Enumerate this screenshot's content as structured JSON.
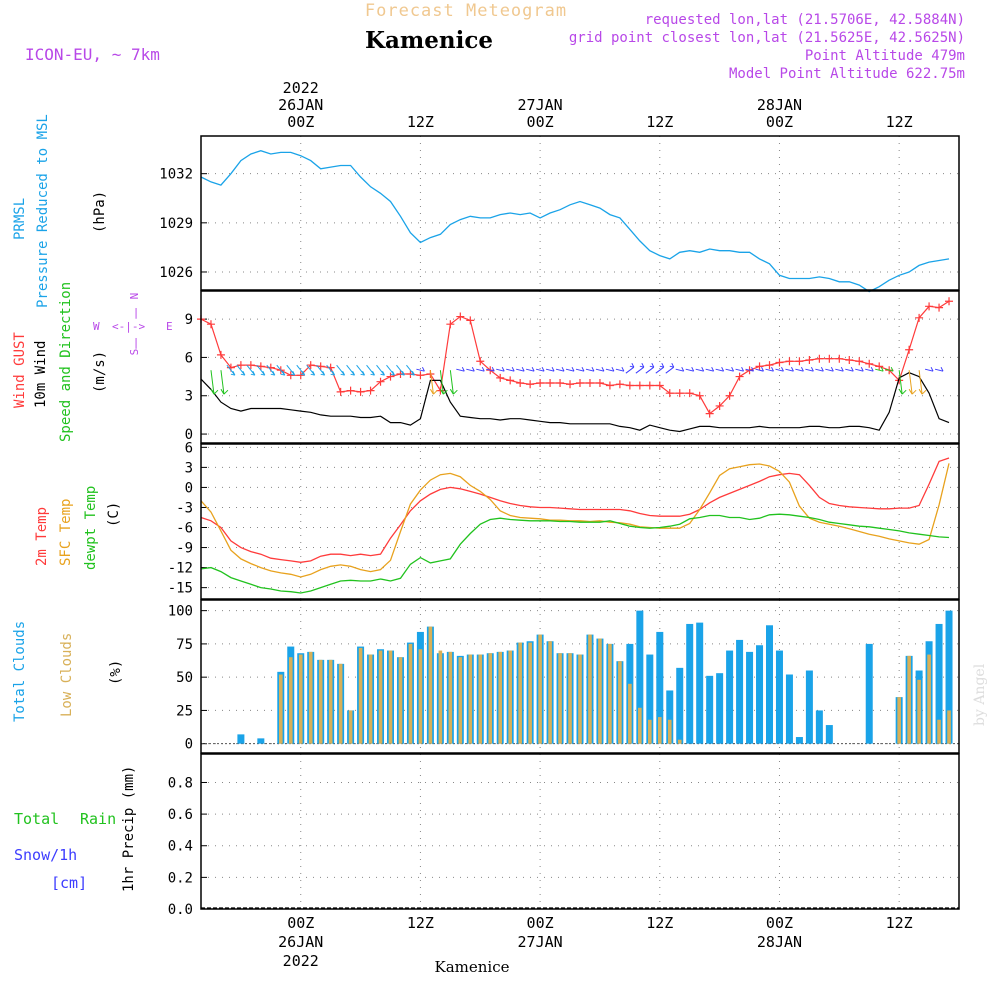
{
  "header": {
    "banner": "Forecast Meteogram",
    "location": "Kamenice",
    "model": "ICON-EU, ~ 7km",
    "requested": "requested lon,lat (21.5706E, 42.5884N)",
    "gridpoint": "grid point closest lon,lat (21.5625E, 42.5625N)",
    "point_alt": "Point Altitude 479m",
    "model_alt": "Model Point Altitude 622.75m",
    "footer_location": "Kamenice",
    "watermark": "by Angel"
  },
  "time_axis": {
    "top": [
      {
        "hour": 10,
        "lines": [
          "2022",
          "26JAN",
          "00Z"
        ]
      },
      {
        "hour": 22,
        "lines": [
          "12Z"
        ]
      },
      {
        "hour": 34,
        "lines": [
          "27JAN",
          "00Z"
        ]
      },
      {
        "hour": 46,
        "lines": [
          "12Z"
        ]
      },
      {
        "hour": 58,
        "lines": [
          "28JAN",
          "00Z"
        ]
      },
      {
        "hour": 70,
        "lines": [
          "12Z"
        ]
      }
    ],
    "bottom": [
      {
        "hour": 10,
        "lines": [
          "00Z",
          "26JAN",
          "2022"
        ]
      },
      {
        "hour": 22,
        "lines": [
          "12Z"
        ]
      },
      {
        "hour": 34,
        "lines": [
          "00Z",
          "27JAN"
        ]
      },
      {
        "hour": 46,
        "lines": [
          "12Z"
        ]
      },
      {
        "hour": 58,
        "lines": [
          "00Z",
          "28JAN"
        ]
      },
      {
        "hour": 70,
        "lines": [
          "12Z"
        ]
      }
    ],
    "hours": [
      0,
      76
    ]
  },
  "colors": {
    "prmsl": "#1aa3e8",
    "gust": "#ff3b3b",
    "wind10m": "#000000",
    "speed_dir": "#21c21e",
    "temp2m": "#ff3b3b",
    "sfc": "#e8a21e",
    "dewpt": "#21c21e",
    "total_cloud": "#1aa3e8",
    "low_cloud": "#d8b058",
    "total_rain": "#21c21e",
    "snow": "#3c3cff",
    "purple": "#b848e8",
    "banner": "#f0c890"
  },
  "labels": {
    "prmsl": [
      "PRMSL",
      "Pressure Reduced to MSL"
    ],
    "prmsl_unit": "(hPa)",
    "wind_gust": "Wind GUST",
    "wind_10m": "10m Wind",
    "wind_speed_dir": "Speed and Direction",
    "wind_unit": "(m/s)",
    "compass": {
      "n": "N",
      "s": "S",
      "e": "E",
      "w": "W",
      "arrow_left": "<-|->",
      "mark_n": "|",
      "mark_s": "|"
    },
    "temp_2m": "2m Temp",
    "temp_sfc": "SFC Temp",
    "temp_dew": "dewpt Temp",
    "temp_unit": "(C)",
    "cloud_total": "Total Clouds",
    "cloud_low": "Low Clouds",
    "cloud_unit": "(%)",
    "rain_total": "Total",
    "rain_word": "Rain",
    "snow": "Snow/1h",
    "snow_unit": "[cm]",
    "precip": "1hr Precip (mm)"
  },
  "chart_data": [
    {
      "type": "line",
      "title": "PRMSL Pressure Reduced to MSL",
      "ylabel": "(hPa)",
      "ylim": [
        1024.9,
        1034.3
      ],
      "yticks": [
        1026,
        1029,
        1032
      ],
      "x": [
        0,
        1,
        2,
        3,
        4,
        5,
        6,
        7,
        8,
        9,
        10,
        11,
        12,
        13,
        14,
        15,
        16,
        17,
        18,
        19,
        20,
        21,
        22,
        23,
        24,
        25,
        26,
        27,
        28,
        29,
        30,
        31,
        32,
        33,
        34,
        35,
        36,
        37,
        38,
        39,
        40,
        41,
        42,
        43,
        44,
        45,
        46,
        47,
        48,
        49,
        50,
        51,
        52,
        53,
        54,
        55,
        56,
        57,
        58,
        59,
        60,
        61,
        62,
        63,
        64,
        65,
        66,
        67,
        68,
        69,
        70,
        71,
        72,
        73,
        74,
        75
      ],
      "series": [
        {
          "name": "PRMSL",
          "values": [
            1031.8,
            1031.5,
            1031.3,
            1032,
            1032.8,
            1033.2,
            1033.4,
            1033.2,
            1033.3,
            1033.3,
            1033.1,
            1032.8,
            1032.3,
            1032.4,
            1032.5,
            1032.5,
            1031.8,
            1031.2,
            1030.8,
            1030.3,
            1029.4,
            1028.4,
            1027.8,
            1028.1,
            1028.3,
            1028.9,
            1029.2,
            1029.4,
            1029.3,
            1029.3,
            1029.5,
            1029.6,
            1029.5,
            1029.6,
            1029.3,
            1029.6,
            1029.8,
            1030.1,
            1030.3,
            1030.1,
            1029.9,
            1029.5,
            1029.3,
            1028.6,
            1027.9,
            1027.3,
            1027,
            1026.8,
            1027.2,
            1027.3,
            1027.2,
            1027.4,
            1027.3,
            1027.3,
            1027.2,
            1027.2,
            1026.8,
            1026.5,
            1025.8,
            1025.6,
            1025.6,
            1025.6,
            1025.7,
            1025.6,
            1025.4,
            1025.4,
            1025.2,
            1024.8,
            1025.1,
            1025.5,
            1025.8,
            1026.0,
            1026.4,
            1026.6,
            1026.7,
            1026.8
          ]
        }
      ]
    },
    {
      "type": "line",
      "title": "Wind GUST / 10m Wind Speed and Direction",
      "ylabel": "(m/s)",
      "ylim": [
        -0.7,
        11.2
      ],
      "yticks": [
        0,
        3,
        6,
        9
      ],
      "x": [
        0,
        1,
        2,
        3,
        4,
        5,
        6,
        7,
        8,
        9,
        10,
        11,
        12,
        13,
        14,
        15,
        16,
        17,
        18,
        19,
        20,
        21,
        22,
        23,
        24,
        25,
        26,
        27,
        28,
        29,
        30,
        31,
        32,
        33,
        34,
        35,
        36,
        37,
        38,
        39,
        40,
        41,
        42,
        43,
        44,
        45,
        46,
        47,
        48,
        49,
        50,
        51,
        52,
        53,
        54,
        55,
        56,
        57,
        58,
        59,
        60,
        61,
        62,
        63,
        64,
        65,
        66,
        67,
        68,
        69,
        70,
        71,
        72,
        73,
        74,
        75
      ],
      "series": [
        {
          "name": "Wind GUST",
          "marker": "+",
          "values": [
            9,
            8.6,
            6.2,
            5.2,
            5.4,
            5.4,
            5.3,
            5.2,
            5,
            4.6,
            4.6,
            5.4,
            5.3,
            5.2,
            3.3,
            3.4,
            3.3,
            3.4,
            4.1,
            4.5,
            4.7,
            4.7,
            4.6,
            4.7,
            3.4,
            8.6,
            9.2,
            8.9,
            5.7,
            5,
            4.4,
            4.2,
            4,
            3.9,
            4,
            4,
            4,
            3.9,
            4,
            4,
            4,
            3.8,
            3.9,
            3.8,
            3.8,
            3.8,
            3.8,
            3.2,
            3.2,
            3.2,
            3,
            1.6,
            2.2,
            3,
            4.5,
            5,
            5.3,
            5.4,
            5.6,
            5.7,
            5.7,
            5.8,
            5.9,
            5.9,
            5.9,
            5.8,
            5.7,
            5.5,
            5.3,
            5,
            4.2,
            6.6,
            9.1,
            10,
            9.9,
            10.4
          ]
        },
        {
          "name": "10m Wind",
          "values": [
            4.3,
            3.5,
            2.5,
            2,
            1.8,
            2,
            2,
            2,
            2,
            1.9,
            1.8,
            1.7,
            1.5,
            1.4,
            1.4,
            1.4,
            1.3,
            1.3,
            1.4,
            0.9,
            0.9,
            0.7,
            1.2,
            4.2,
            4.2,
            2.5,
            1.4,
            1.3,
            1.2,
            1.2,
            1.1,
            1.2,
            1.2,
            1.1,
            1,
            0.9,
            0.9,
            0.8,
            0.8,
            0.8,
            0.8,
            0.8,
            0.6,
            0.5,
            0.3,
            0.7,
            0.5,
            0.3,
            0.2,
            0.4,
            0.6,
            0.6,
            0.5,
            0.5,
            0.5,
            0.5,
            0.6,
            0.5,
            0.5,
            0.5,
            0.5,
            0.6,
            0.6,
            0.5,
            0.5,
            0.6,
            0.6,
            0.5,
            0.3,
            1.7,
            4.4,
            4.8,
            4.5,
            3.2,
            1.2,
            0.9
          ]
        }
      ]
    },
    {
      "type": "line",
      "title": "2m Temp / SFC Temp / dewpt Temp",
      "ylabel": "(C)",
      "ylim": [
        -16.7,
        6.5
      ],
      "yticks": [
        -15,
        -12,
        -9,
        -6,
        -3,
        0,
        3,
        6
      ],
      "x": [
        0,
        1,
        2,
        3,
        4,
        5,
        6,
        7,
        8,
        9,
        10,
        11,
        12,
        13,
        14,
        15,
        16,
        17,
        18,
        19,
        20,
        21,
        22,
        23,
        24,
        25,
        26,
        27,
        28,
        29,
        30,
        31,
        32,
        33,
        34,
        35,
        36,
        37,
        38,
        39,
        40,
        41,
        42,
        43,
        44,
        45,
        46,
        47,
        48,
        49,
        50,
        51,
        52,
        53,
        54,
        55,
        56,
        57,
        58,
        59,
        60,
        61,
        62,
        63,
        64,
        65,
        66,
        67,
        68,
        69,
        70,
        71,
        72,
        73,
        74,
        75
      ],
      "series": [
        {
          "name": "2m Temp",
          "values": [
            -4.5,
            -5,
            -6,
            -8,
            -9,
            -9.6,
            -10,
            -10.6,
            -10.8,
            -11,
            -11.2,
            -11,
            -10.3,
            -10,
            -10,
            -10.2,
            -10,
            -10.2,
            -10,
            -7.6,
            -5.6,
            -3.5,
            -2,
            -1,
            -0.3,
            0,
            -0.2,
            -0.6,
            -1,
            -1.5,
            -2,
            -2.4,
            -2.7,
            -2.9,
            -3,
            -3,
            -3.1,
            -3.2,
            -3.3,
            -3.3,
            -3.3,
            -3.3,
            -3.3,
            -3.5,
            -3.9,
            -4.2,
            -4.3,
            -4.3,
            -4.3,
            -4,
            -3.3,
            -2.3,
            -1.5,
            -0.9,
            -0.3,
            0.3,
            0.9,
            1.6,
            1.9,
            2.1,
            1.9,
            0.3,
            -1.5,
            -2.4,
            -2.7,
            -2.9,
            -3,
            -3.1,
            -3.2,
            -3.2,
            -3.1,
            -3.1,
            -2.7,
            0.5,
            3.9,
            4.4
          ]
        },
        {
          "name": "SFC Temp",
          "values": [
            -2,
            -3.7,
            -6.5,
            -9.4,
            -10.7,
            -11.4,
            -12,
            -12.5,
            -12.8,
            -13,
            -13.4,
            -13,
            -12.3,
            -11.8,
            -11.6,
            -11.8,
            -12.3,
            -12.6,
            -12.3,
            -10.9,
            -6.6,
            -2.5,
            -0.4,
            1.1,
            1.9,
            2.1,
            1.6,
            0.3,
            -0.6,
            -1.8,
            -3.5,
            -4.2,
            -4.5,
            -4.6,
            -4.7,
            -4.9,
            -4.9,
            -5,
            -5,
            -5.1,
            -5,
            -5.2,
            -5.3,
            -5.5,
            -5.9,
            -6,
            -6.1,
            -6.1,
            -6.1,
            -5.4,
            -3.3,
            -0.8,
            1.8,
            2.8,
            3.1,
            3.4,
            3.5,
            3.2,
            2.4,
            0.8,
            -2.8,
            -4.6,
            -5.2,
            -5.5,
            -5.8,
            -6.2,
            -6.6,
            -7,
            -7.3,
            -7.7,
            -8,
            -8.3,
            -8.5,
            -7.8,
            -2.6,
            3.6
          ]
        },
        {
          "name": "dewpt Temp",
          "values": [
            -12.2,
            -12,
            -12.6,
            -13.5,
            -14,
            -14.5,
            -15,
            -15.2,
            -15.5,
            -15.6,
            -15.8,
            -15.5,
            -15,
            -14.5,
            -14,
            -13.9,
            -14,
            -14,
            -13.7,
            -14,
            -13.6,
            -11.5,
            -10.5,
            -11.3,
            -11,
            -10.7,
            -8.5,
            -6.9,
            -5.5,
            -4.8,
            -4.6,
            -4.8,
            -4.9,
            -5,
            -5,
            -5,
            -5.1,
            -5.1,
            -5.2,
            -5.2,
            -5.2,
            -5,
            -5.4,
            -5.8,
            -6,
            -6.1,
            -6,
            -5.8,
            -5.5,
            -4.7,
            -4.5,
            -4.2,
            -4.2,
            -4.5,
            -4.5,
            -4.8,
            -4.6,
            -4.1,
            -4,
            -4.1,
            -4.3,
            -4.5,
            -4.8,
            -5.2,
            -5.4,
            -5.6,
            -5.8,
            -5.9,
            -6.1,
            -6.3,
            -6.5,
            -6.8,
            -7,
            -7.2,
            -7.4,
            -7.5
          ]
        }
      ]
    },
    {
      "type": "bar",
      "title": "Total Clouds / Low Clouds",
      "ylabel": "(%)",
      "ylim": [
        -7,
        108
      ],
      "yticks": [
        0,
        25,
        50,
        75,
        100
      ],
      "x": [
        0,
        1,
        2,
        3,
        4,
        5,
        6,
        7,
        8,
        9,
        10,
        11,
        12,
        13,
        14,
        15,
        16,
        17,
        18,
        19,
        20,
        21,
        22,
        23,
        24,
        25,
        26,
        27,
        28,
        29,
        30,
        31,
        32,
        33,
        34,
        35,
        36,
        37,
        38,
        39,
        40,
        41,
        42,
        43,
        44,
        45,
        46,
        47,
        48,
        49,
        50,
        51,
        52,
        53,
        54,
        55,
        56,
        57,
        58,
        59,
        60,
        61,
        62,
        63,
        64,
        65,
        66,
        67,
        68,
        69,
        70,
        71,
        72,
        73,
        74,
        75
      ],
      "series": [
        {
          "name": "Total Clouds",
          "values": [
            0,
            0,
            0,
            0,
            7,
            0,
            4,
            0,
            54,
            73,
            68,
            69,
            63,
            63,
            60,
            25,
            73,
            67,
            71,
            70,
            65,
            76,
            84,
            88,
            68,
            69,
            66,
            67,
            67,
            68,
            69,
            70,
            76,
            77,
            82,
            77,
            68,
            68,
            67,
            82,
            79,
            75,
            62,
            75,
            100,
            67,
            84,
            40,
            57,
            90,
            91,
            51,
            53,
            70,
            78,
            69,
            74,
            89,
            70,
            52,
            5,
            55,
            25,
            14,
            0,
            0,
            0,
            75,
            0,
            0,
            35,
            66,
            55,
            77,
            90,
            100
          ]
        },
        {
          "name": "Low Clouds",
          "values": [
            0,
            0,
            0,
            0,
            0,
            0,
            0,
            0,
            52,
            65,
            67,
            69,
            63,
            63,
            60,
            25,
            72,
            67,
            70,
            70,
            65,
            75,
            71,
            88,
            70,
            69,
            65,
            67,
            67,
            68,
            69,
            70,
            76,
            76,
            82,
            77,
            68,
            68,
            67,
            82,
            79,
            75,
            62,
            45,
            27,
            18,
            20,
            18,
            3,
            0,
            0,
            0,
            0,
            0,
            0,
            0,
            0,
            0,
            0,
            0,
            0,
            0,
            0,
            0,
            0,
            0,
            0,
            0,
            0,
            0,
            35,
            66,
            48,
            67,
            18,
            25
          ]
        }
      ]
    },
    {
      "type": "line",
      "title": "1hr Precip (mm)",
      "ylabel": "1hr Precip (mm)",
      "ylim": [
        0,
        0.98
      ],
      "yticks": [
        0,
        0.2,
        0.4,
        0.6,
        0.8
      ],
      "series": [
        {
          "name": "Total Rain",
          "values": []
        },
        {
          "name": "Snow/1h",
          "values": []
        }
      ]
    }
  ]
}
